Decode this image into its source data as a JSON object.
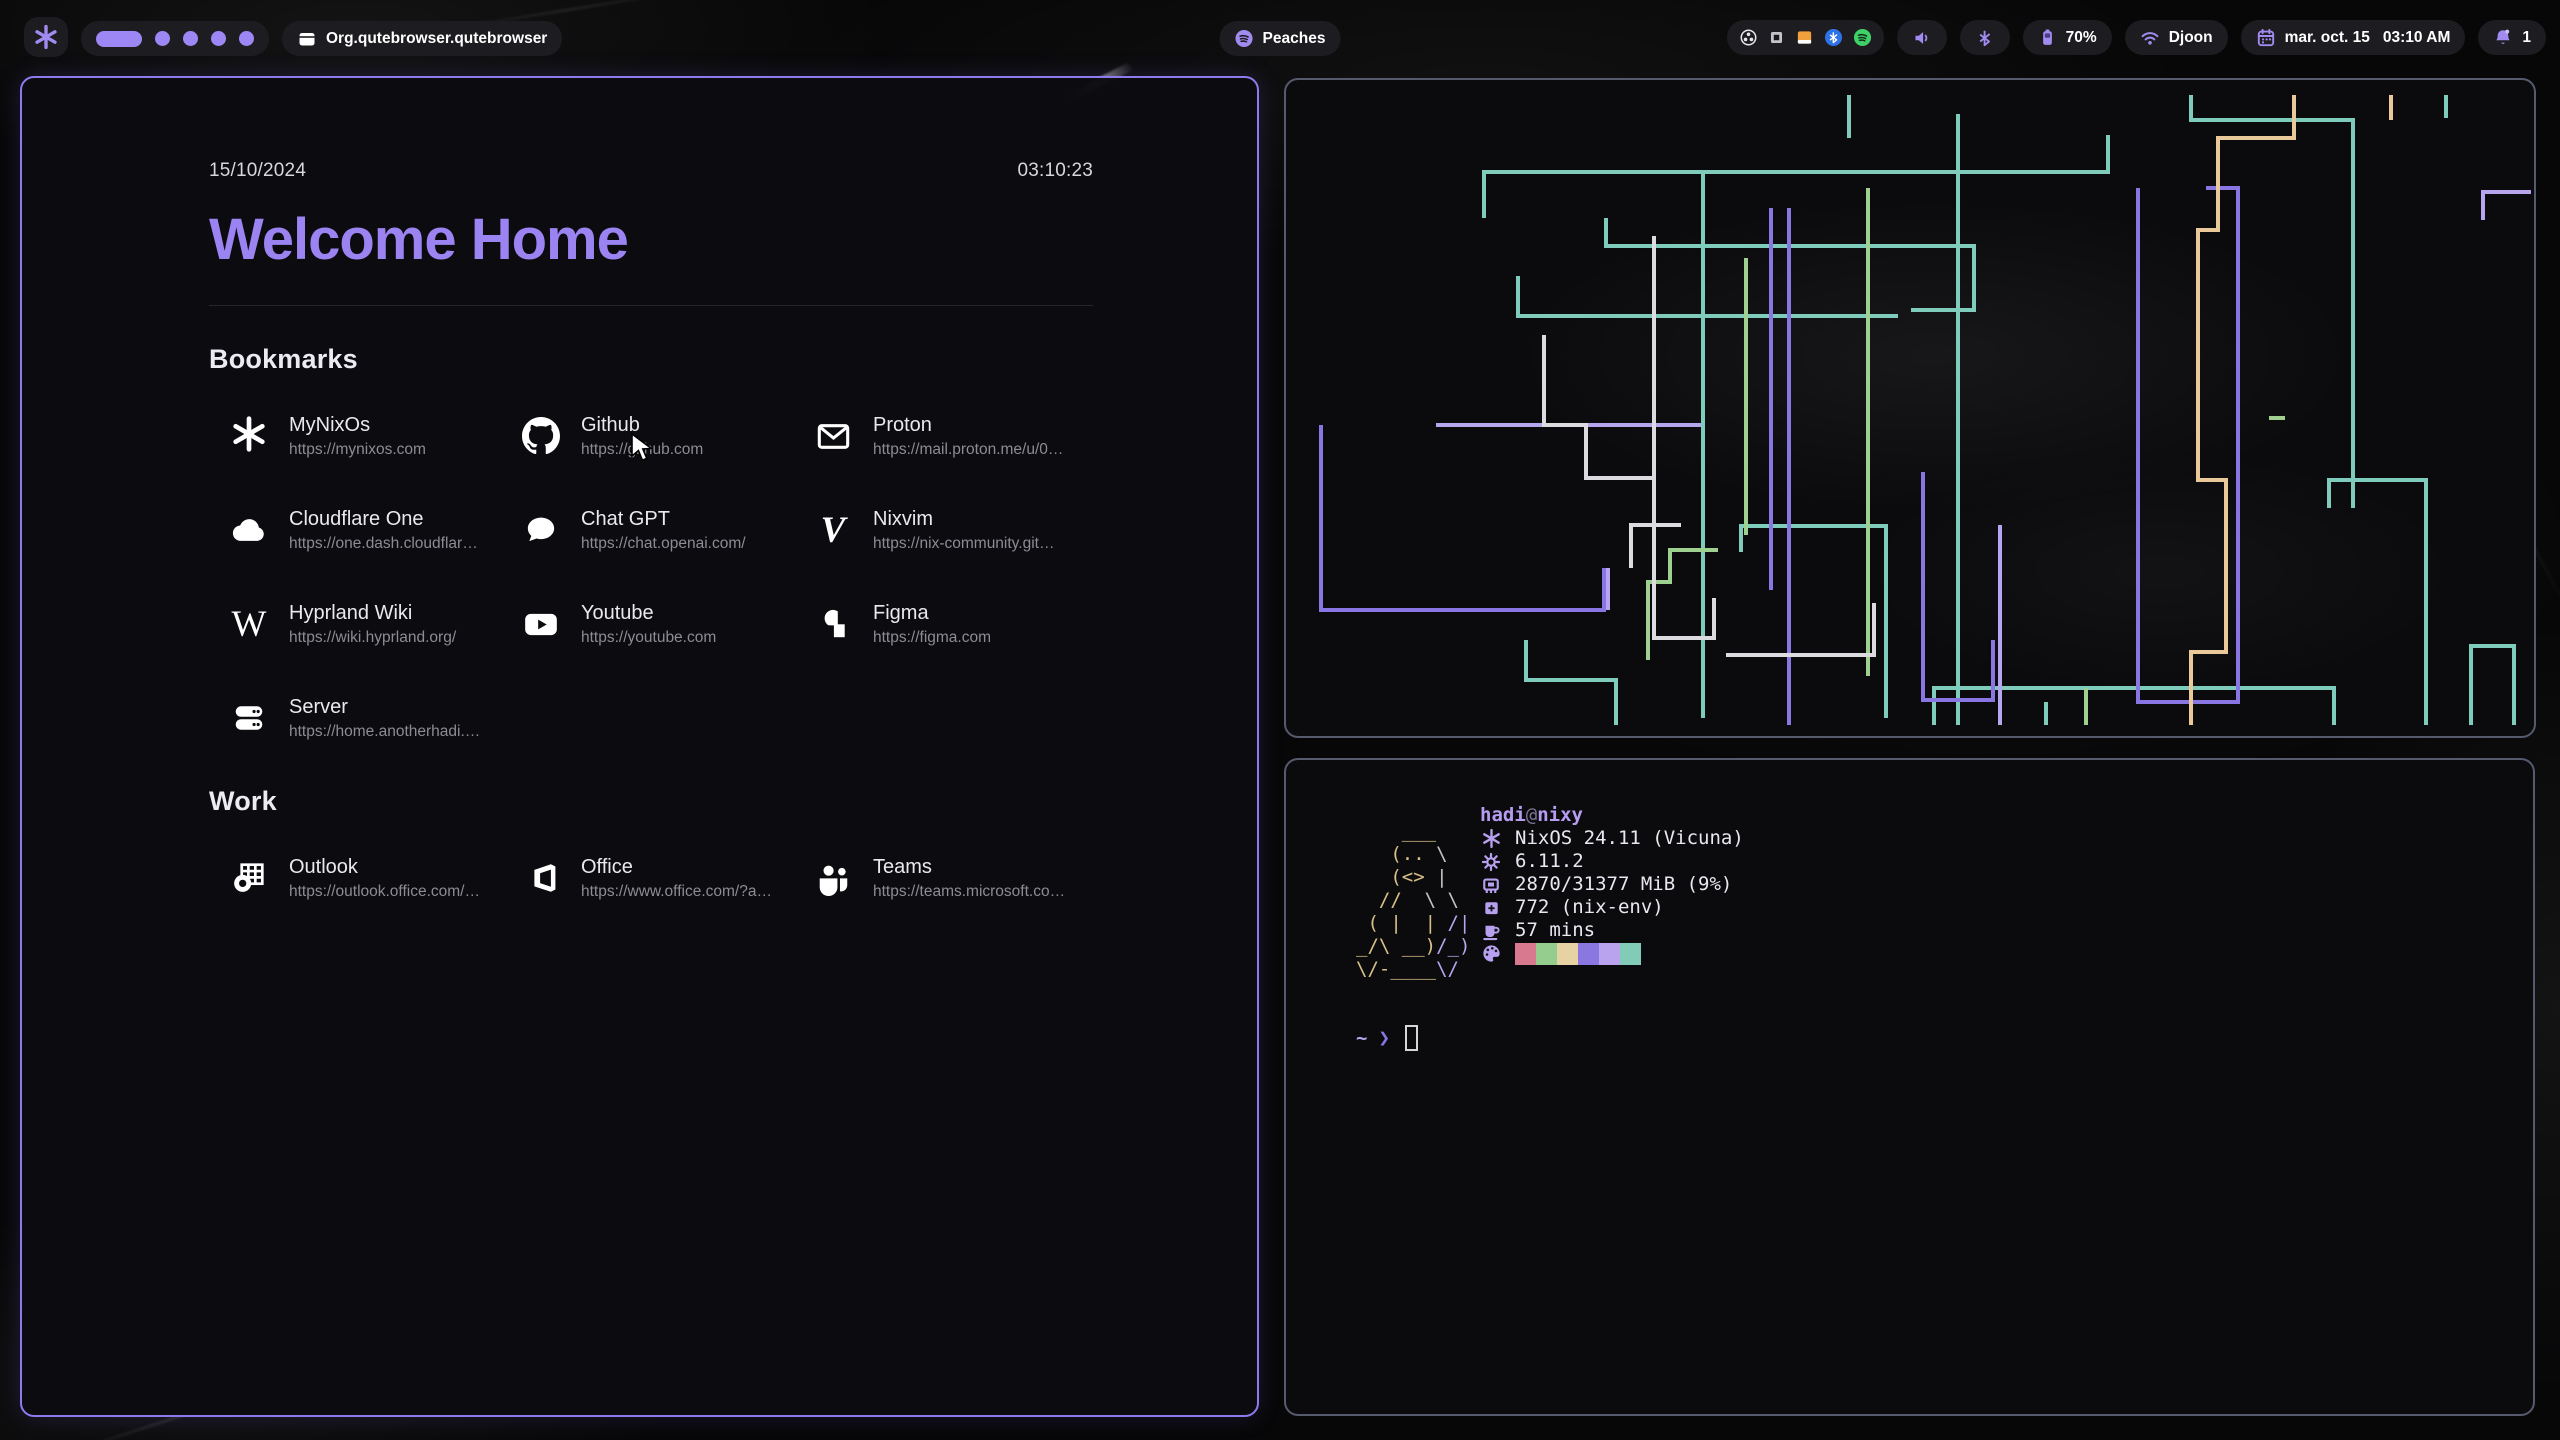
{
  "topbar": {
    "window_title": "Org.qutebrowser.qutebrowser",
    "media": {
      "label": "Peaches"
    },
    "workspaces": {
      "active": 1,
      "total": 5
    },
    "tray": [
      "obs",
      "kvm",
      "files",
      "bluetooth",
      "spotify"
    ],
    "battery": {
      "percent": "70%"
    },
    "network": {
      "ssid": "Djoon"
    },
    "clock": {
      "date": "mar. oct. 15",
      "time": "03:10 AM"
    },
    "notifications": {
      "count": "1"
    }
  },
  "browser": {
    "date": "15/10/2024",
    "time": "03:10:23",
    "title": "Welcome Home",
    "sections": [
      {
        "heading": "Bookmarks",
        "items": [
          {
            "name": "MyNixOs",
            "url": "https://mynixos.com",
            "icon": "nix"
          },
          {
            "name": "Github",
            "url": "https://github.com",
            "icon": "github"
          },
          {
            "name": "Proton",
            "url": "https://mail.proton.me/u/0…",
            "icon": "mail"
          },
          {
            "name": "Cloudflare One",
            "url": "https://one.dash.cloudflar…",
            "icon": "cloud"
          },
          {
            "name": "Chat GPT",
            "url": "https://chat.openai.com/",
            "icon": "chat"
          },
          {
            "name": "Nixvim",
            "url": "https://nix-community.git…",
            "icon": "nixvim"
          },
          {
            "name": "Hyprland Wiki",
            "url": "https://wiki.hyprland.org/",
            "icon": "wiki"
          },
          {
            "name": "Youtube",
            "url": "https://youtube.com",
            "icon": "youtube"
          },
          {
            "name": "Figma",
            "url": "https://figma.com",
            "icon": "figma"
          },
          {
            "name": "Server",
            "url": "https://home.anotherhadi.…",
            "icon": "server"
          }
        ]
      },
      {
        "heading": "Work",
        "items": [
          {
            "name": "Outlook",
            "url": "https://outlook.office.com/…",
            "icon": "outlook"
          },
          {
            "name": "Office",
            "url": "https://www.office.com/?a…",
            "icon": "office"
          },
          {
            "name": "Teams",
            "url": "https://teams.microsoft.co…",
            "icon": "teams"
          }
        ]
      }
    ]
  },
  "fastfetch": {
    "title": {
      "user": "hadi",
      "at": "@",
      "host": "nixy"
    },
    "ascii_art": [
      [
        [
          "a",
          "    ___"
        ]
      ],
      [
        [
          "a",
          "   (.. "
        ],
        [
          "b",
          "\\"
        ]
      ],
      [
        [
          "a",
          "   (<> "
        ],
        [
          "b",
          "|"
        ]
      ],
      [
        [
          "a",
          "  //  "
        ],
        [
          "b",
          "\\ \\"
        ]
      ],
      [
        [
          "a",
          " ( |  | "
        ],
        [
          "c",
          "/|"
        ]
      ],
      [
        [
          "a",
          "_/\\ __)"
        ],
        [
          "c",
          "/_)"
        ]
      ],
      [
        [
          "a",
          "\\/-____"
        ],
        [
          "c",
          "\\/"
        ]
      ]
    ],
    "info": [
      {
        "icon": "snowflake",
        "label": "os",
        "text": "NixOS 24.11 (Vicuna)"
      },
      {
        "icon": "kernel",
        "label": "kernel",
        "text": "6.11.2"
      },
      {
        "icon": "memory",
        "label": "memory",
        "text": "2870/31377 MiB (9%)"
      },
      {
        "icon": "packages",
        "label": "packages",
        "text": "772 (nix-env)"
      },
      {
        "icon": "uptime",
        "label": "uptime",
        "text": "57 mins"
      }
    ],
    "palette": [
      "#d9798f",
      "#95cd8e",
      "#e6d2a3",
      "#8b77e0",
      "#b9a3ef",
      "#82cbb6"
    ],
    "prompt": {
      "dir": "~",
      "symbol": "❯"
    }
  },
  "pipes": [
    {
      "c": "#7fccbc",
      "p": "563,15 563,58"
    },
    {
      "c": "#7fccbc",
      "p": "822,55 822,92 198,92 198,138"
    },
    {
      "c": "#7fccbc",
      "p": "320,138 320,166 688,166 688,230 625,230"
    },
    {
      "c": "#7fccbc",
      "p": "232,196 232,236 612,236"
    },
    {
      "c": "#7fccbc",
      "p": "672,34 672,645"
    },
    {
      "c": "#7fccbc",
      "p": "417,92 417,638"
    },
    {
      "c": "#7fccbc",
      "p": "455,472 455,446 600,446 600,638"
    },
    {
      "c": "#7fccbc",
      "p": "648,645 648,608 1048,608 1048,645"
    },
    {
      "c": "#7fccbc",
      "p": "760,645 760,622"
    },
    {
      "c": "#7fccbc",
      "p": "1185,645 1185,566 1228,566 1228,645"
    },
    {
      "c": "#7fccbc",
      "p": "905,15 905,40 1067,40 1067,428"
    },
    {
      "c": "#7fccbc",
      "p": "1043,428 1043,400 1140,400 1140,645"
    },
    {
      "c": "#7fccbc",
      "p": "1160,15 1160,38"
    },
    {
      "c": "#7fccbc",
      "p": "240,560 240,600 330,600 330,645"
    },
    {
      "c": "#9ed08f",
      "p": "460,178 460,455"
    },
    {
      "c": "#9ed08f",
      "p": "582,108 582,596"
    },
    {
      "c": "#9ed08f",
      "p": "983,338 999,338"
    },
    {
      "c": "#9ed08f",
      "p": "362,580 362,502 384,502 384,470 432,470"
    },
    {
      "c": "#9ed08f",
      "p": "800,608 800,645"
    },
    {
      "c": "#8a76e3",
      "p": "485,128 485,510"
    },
    {
      "c": "#8a76e3",
      "p": "503,128 503,645"
    },
    {
      "c": "#8a76e3",
      "p": "637,392 637,620 707,620 707,560"
    },
    {
      "c": "#8a76e3",
      "p": "852,108 852,622 952,622 952,108 920,108"
    },
    {
      "c": "#8a76e3",
      "p": "35,345 35,530 318,530 318,488"
    },
    {
      "c": "#b7a6ee",
      "p": "150,345 415,345"
    },
    {
      "c": "#b7a6ee",
      "p": "322,488 322,530"
    },
    {
      "c": "#b7a6ee",
      "p": "714,445 714,645"
    },
    {
      "c": "#b7a6ee",
      "p": "1197,140 1197,112 1245,112"
    },
    {
      "c": "#e9c99a",
      "p": "1008,15 1008,58 932,58 932,150 912,150 912,400 940,400 940,572 905,572 905,645"
    },
    {
      "c": "#e9c99a",
      "p": "1105,15 1105,40"
    },
    {
      "c": "#dcdce0",
      "p": "368,156 368,558 428,558 428,518"
    },
    {
      "c": "#dcdce0",
      "p": "258,255 258,345 300,345 300,398 368,398"
    },
    {
      "c": "#dcdce0",
      "p": "440,575 588,575 588,523"
    },
    {
      "c": "#dcdce0",
      "p": "345,488 345,445 395,445"
    }
  ],
  "colors": {
    "accent": "#9d87f5",
    "window_border_focus": "#8f79ee",
    "window_border": "#565a6d",
    "chip_bg": "#1d1d21"
  }
}
